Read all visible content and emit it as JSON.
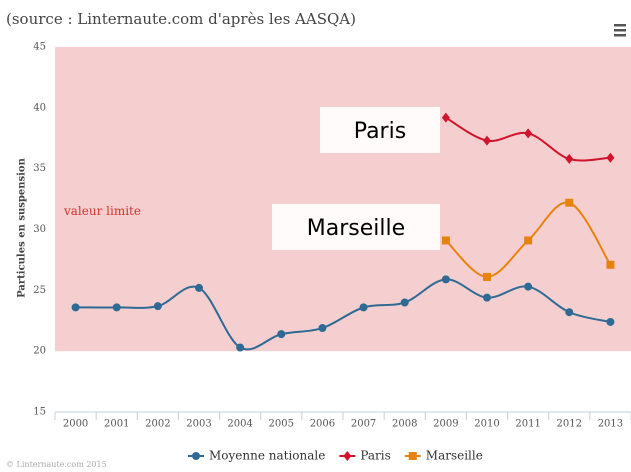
{
  "chart_data": {
    "type": "line",
    "subtitle": "(source : Linternaute.com d'après les AASQA)",
    "y_label": "Particules en suspension",
    "credit": "© Linternaute.com 2015",
    "categories": [
      "2000",
      "2001",
      "2002",
      "2003",
      "2004",
      "2005",
      "2006",
      "2007",
      "2008",
      "2009",
      "2010",
      "2011",
      "2012",
      "2013"
    ],
    "series": [
      {
        "name": "Moyenne nationale",
        "color": "#2f6a94",
        "marker": "circle",
        "values": [
          23.6,
          23.6,
          23.7,
          25.2,
          20.3,
          21.4,
          21.9,
          23.6,
          24.0,
          25.9,
          24.4,
          25.3,
          23.2,
          22.4
        ]
      },
      {
        "name": "Paris",
        "color": "#d0142c",
        "marker": "diamond",
        "values": [
          null,
          null,
          null,
          null,
          null,
          null,
          null,
          null,
          null,
          39.2,
          37.3,
          37.9,
          35.8,
          35.9
        ]
      },
      {
        "name": "Marseille",
        "color": "#e8820e",
        "marker": "square",
        "values": [
          null,
          null,
          null,
          null,
          null,
          null,
          null,
          null,
          null,
          29.1,
          26.1,
          29.1,
          32.2,
          27.1
        ]
      }
    ],
    "ylim": [
      15,
      45
    ],
    "yticks": [
      15,
      20,
      25,
      30,
      35,
      40,
      45
    ],
    "plot_band": {
      "from": 20,
      "to": 45,
      "color": "#f5cfcf",
      "label": "valeur limite"
    },
    "annotations": [
      "Paris",
      "Marseille"
    ],
    "legend": "bottom"
  }
}
